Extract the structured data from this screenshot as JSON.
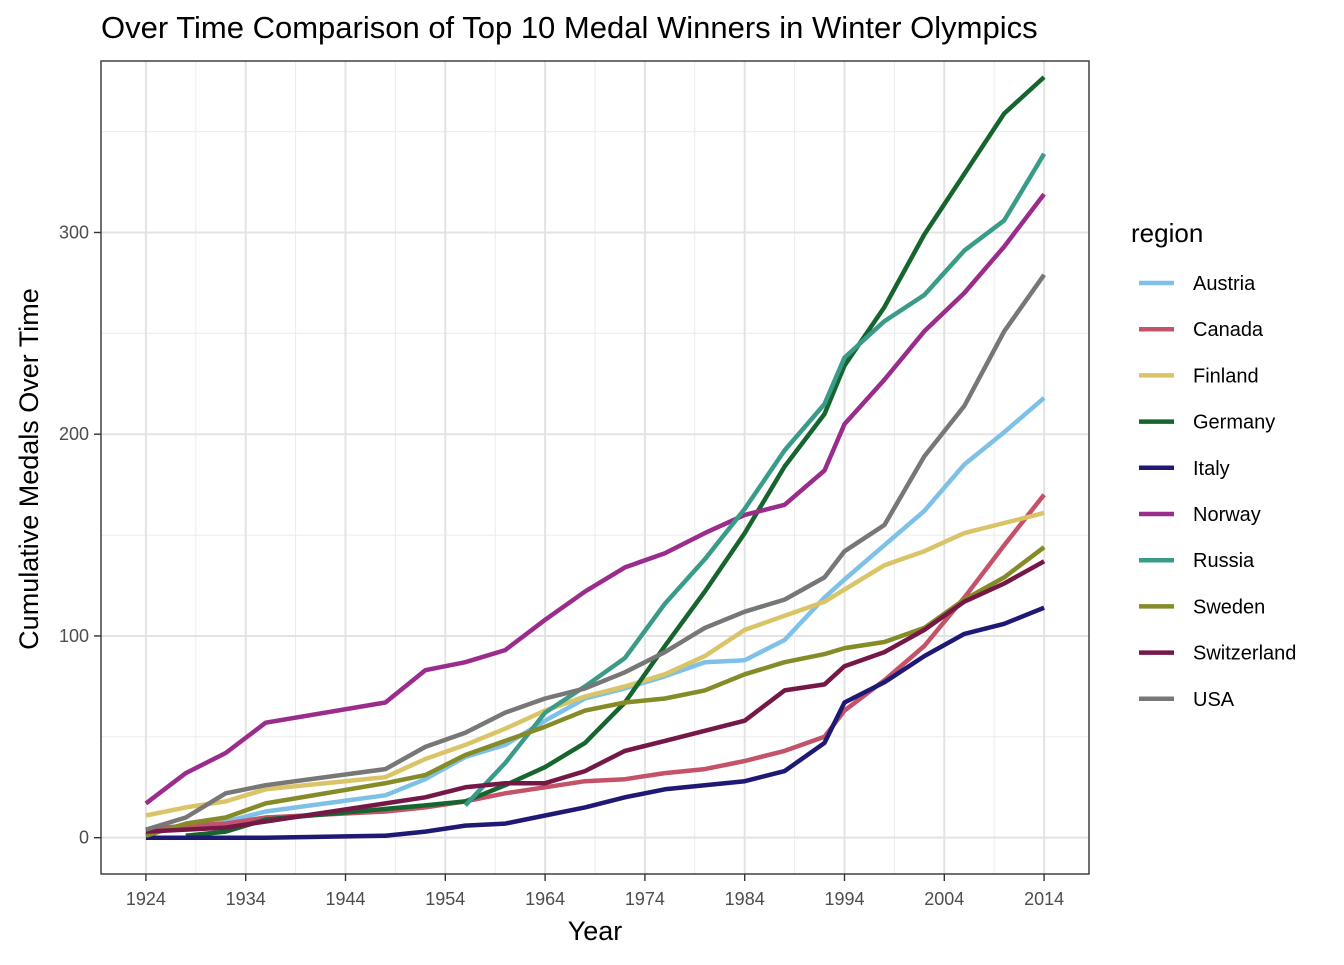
{
  "chart_data": {
    "type": "line",
    "title": "Over Time Comparison of Top 10 Medal Winners in Winter Olympics",
    "xlabel": "Year",
    "ylabel": "Cumulative Medals Over Time",
    "xlim": [
      1919.5,
      2018.5
    ],
    "ylim": [
      -18,
      385
    ],
    "x_ticks": [
      1924,
      1934,
      1944,
      1954,
      1964,
      1974,
      1984,
      1994,
      2004,
      2014
    ],
    "x_tick_labels": [
      "1924",
      "1934",
      "1944",
      "1954",
      "1964",
      "1974",
      "1984",
      "1994",
      "2004",
      "2014"
    ],
    "y_ticks": [
      0,
      100,
      200,
      300
    ],
    "y_tick_labels": [
      "0",
      "100",
      "200",
      "300"
    ],
    "grid": true,
    "legend": {
      "title": "region",
      "position": "right"
    },
    "series": [
      {
        "name": "Austria",
        "color": "#7DC0E8",
        "x": [
          1924,
          1928,
          1932,
          1936,
          1948,
          1952,
          1956,
          1960,
          1964,
          1968,
          1972,
          1976,
          1980,
          1984,
          1988,
          1992,
          1994,
          1998,
          2002,
          2006,
          2010,
          2014
        ],
        "y": [
          4,
          6,
          8,
          13,
          21,
          29,
          40,
          46,
          58,
          69,
          74,
          80,
          87,
          88,
          98,
          119,
          128,
          145,
          162,
          185,
          201,
          218
        ]
      },
      {
        "name": "Canada",
        "color": "#C4536A",
        "x": [
          1924,
          1928,
          1932,
          1936,
          1948,
          1952,
          1956,
          1960,
          1964,
          1968,
          1972,
          1976,
          1980,
          1984,
          1988,
          1992,
          1994,
          1998,
          2002,
          2006,
          2010,
          2014
        ],
        "y": [
          4,
          6,
          7,
          10,
          13,
          15,
          18,
          22,
          25,
          28,
          29,
          32,
          34,
          38,
          43,
          50,
          63,
          78,
          95,
          119,
          145,
          170
        ]
      },
      {
        "name": "Finland",
        "color": "#D9C468",
        "x": [
          1924,
          1928,
          1932,
          1936,
          1948,
          1952,
          1956,
          1960,
          1964,
          1968,
          1972,
          1976,
          1980,
          1984,
          1988,
          1992,
          1994,
          1998,
          2002,
          2006,
          2010,
          2014
        ],
        "y": [
          11,
          15,
          18,
          24,
          30,
          39,
          46,
          54,
          63,
          70,
          75,
          81,
          90,
          103,
          110,
          117,
          123,
          135,
          142,
          151,
          156,
          161
        ]
      },
      {
        "name": "Germany",
        "color": "#16652F",
        "x": [
          1928,
          1932,
          1936,
          1952,
          1956,
          1960,
          1964,
          1968,
          1972,
          1976,
          1980,
          1984,
          1988,
          1992,
          1994,
          1998,
          2002,
          2006,
          2010,
          2014
        ],
        "y": [
          1,
          3,
          9,
          16,
          18,
          26,
          35,
          47,
          67,
          95,
          122,
          151,
          184,
          210,
          234,
          263,
          299,
          329,
          359,
          377
        ]
      },
      {
        "name": "Italy",
        "color": "#1F1976",
        "x": [
          1924,
          1928,
          1932,
          1936,
          1948,
          1952,
          1956,
          1960,
          1964,
          1968,
          1972,
          1976,
          1980,
          1984,
          1988,
          1992,
          1994,
          1998,
          2002,
          2006,
          2010,
          2014
        ],
        "y": [
          0,
          0,
          0,
          0,
          1,
          3,
          6,
          7,
          11,
          15,
          20,
          24,
          26,
          28,
          33,
          47,
          67,
          77,
          90,
          101,
          106,
          114
        ]
      },
      {
        "name": "Norway",
        "color": "#9A2D8C",
        "x": [
          1924,
          1928,
          1932,
          1936,
          1948,
          1952,
          1956,
          1960,
          1964,
          1968,
          1972,
          1976,
          1980,
          1984,
          1988,
          1992,
          1994,
          1998,
          2002,
          2006,
          2010,
          2014
        ],
        "y": [
          17,
          32,
          42,
          57,
          67,
          83,
          87,
          93,
          108,
          122,
          134,
          141,
          151,
          160,
          165,
          182,
          205,
          227,
          251,
          270,
          293,
          319
        ]
      },
      {
        "name": "Russia",
        "color": "#3A9B89",
        "x": [
          1956,
          1960,
          1964,
          1968,
          1972,
          1976,
          1980,
          1984,
          1988,
          1992,
          1994,
          1998,
          2002,
          2006,
          2010,
          2014
        ],
        "y": [
          16,
          37,
          62,
          75,
          89,
          116,
          138,
          163,
          192,
          215,
          238,
          256,
          269,
          291,
          306,
          339
        ]
      },
      {
        "name": "Sweden",
        "color": "#848B27",
        "x": [
          1924,
          1928,
          1932,
          1936,
          1948,
          1952,
          1956,
          1960,
          1964,
          1968,
          1972,
          1976,
          1980,
          1984,
          1988,
          1992,
          1994,
          1998,
          2002,
          2006,
          2010,
          2014
        ],
        "y": [
          1,
          7,
          10,
          17,
          27,
          31,
          41,
          48,
          55,
          63,
          67,
          69,
          73,
          81,
          87,
          91,
          94,
          97,
          104,
          118,
          129,
          144
        ]
      },
      {
        "name": "Switzerland",
        "color": "#751847",
        "x": [
          1924,
          1928,
          1932,
          1936,
          1948,
          1952,
          1956,
          1960,
          1964,
          1968,
          1972,
          1976,
          1980,
          1984,
          1988,
          1992,
          1994,
          1998,
          2002,
          2006,
          2010,
          2014
        ],
        "y": [
          3,
          4,
          5,
          8,
          17,
          20,
          25,
          27,
          27,
          33,
          43,
          48,
          53,
          58,
          73,
          76,
          85,
          92,
          103,
          117,
          126,
          137
        ]
      },
      {
        "name": "USA",
        "color": "#777777",
        "x": [
          1924,
          1928,
          1932,
          1936,
          1948,
          1952,
          1956,
          1960,
          1964,
          1968,
          1972,
          1976,
          1980,
          1984,
          1988,
          1992,
          1994,
          1998,
          2002,
          2006,
          2010,
          2014
        ],
        "y": [
          4,
          10,
          22,
          26,
          34,
          45,
          52,
          62,
          69,
          74,
          82,
          92,
          104,
          112,
          118,
          129,
          142,
          155,
          189,
          214,
          251,
          279
        ]
      }
    ]
  }
}
